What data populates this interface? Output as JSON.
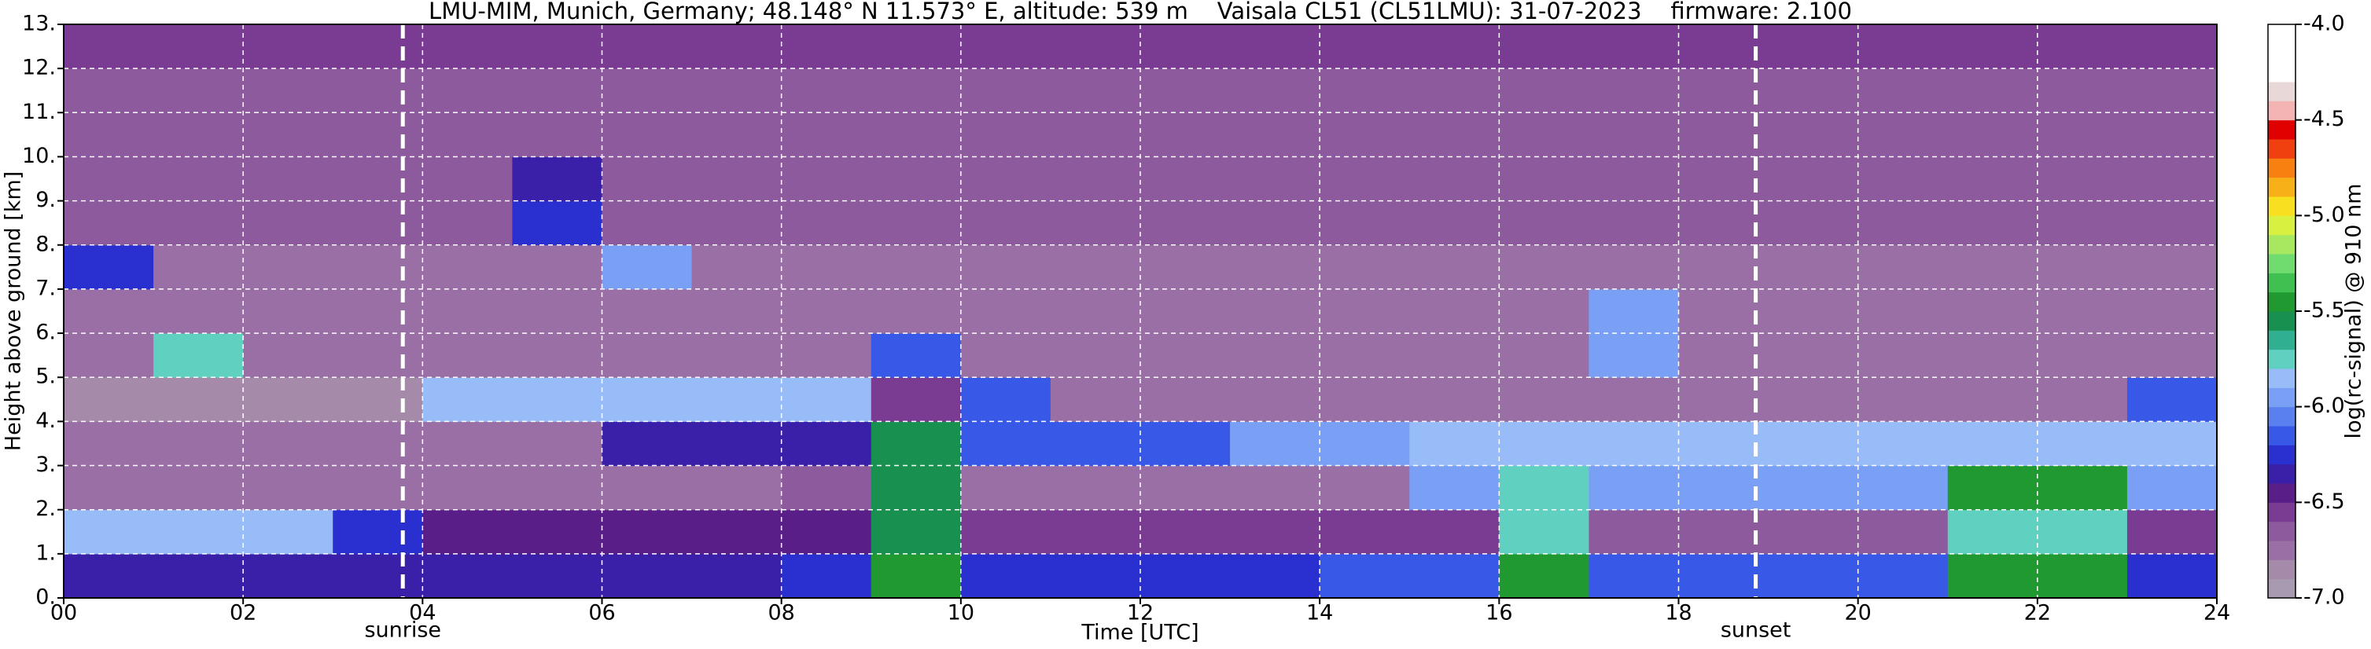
{
  "chart_data": {
    "type": "heatmap",
    "title": "LMU-MIM, Munich, Germany; 48.148° N 11.573° E, altitude: 539 m    Vaisala CL51 (CL51LMU): 31-07-2023    firmware: 2.100",
    "x_label": "Time [UTC]",
    "y_label": "Height above ground [km]",
    "colorbar_label": "log(rc-signal) @ 910 nm",
    "xlim": [
      0,
      24
    ],
    "ylim": [
      0,
      13
    ],
    "xticks": [
      {
        "value": 0,
        "label": "00"
      },
      {
        "value": 2,
        "label": "02"
      },
      {
        "value": 4,
        "label": "04"
      },
      {
        "value": 6,
        "label": "06"
      },
      {
        "value": 8,
        "label": "08"
      },
      10,
      12,
      14,
      16,
      18,
      20,
      22,
      24
    ],
    "yticks": [
      {
        "value": 0,
        "label": "0."
      },
      {
        "value": 1,
        "label": "1."
      },
      {
        "value": 2,
        "label": "2."
      },
      {
        "value": 3,
        "label": "3."
      },
      {
        "value": 4,
        "label": "4."
      },
      {
        "value": 5,
        "label": "5."
      },
      {
        "value": 6,
        "label": "6."
      },
      {
        "value": 7,
        "label": "7."
      },
      {
        "value": 8,
        "label": "8."
      },
      {
        "value": 9,
        "label": "9."
      },
      {
        "value": 10,
        "label": "10."
      },
      {
        "value": 11,
        "label": "11."
      },
      {
        "value": 12,
        "label": "12."
      },
      {
        "value": 13,
        "label": "13."
      }
    ],
    "grid": true,
    "x_bins": [
      0,
      1,
      2,
      3,
      4,
      5,
      6,
      7,
      8,
      9,
      10,
      11,
      12,
      13,
      14,
      15,
      16,
      17,
      18,
      19,
      20,
      21,
      22,
      23,
      24
    ],
    "y_bins": [
      0,
      1,
      2,
      3,
      4,
      5,
      6,
      7,
      8,
      9,
      10,
      11,
      12,
      13
    ],
    "values": [
      [
        -6.4,
        -6.4,
        -6.4,
        -6.4,
        -6.4,
        -6.4,
        -6.4,
        -6.4,
        -6.3,
        -5.5,
        -6.3,
        -6.3,
        -6.3,
        -6.3,
        -6.2,
        -6.2,
        -5.5,
        -6.2,
        -6.2,
        -6.2,
        -6.2,
        -5.5,
        -5.5,
        -6.3
      ],
      [
        -5.9,
        -5.9,
        -5.9,
        -6.3,
        -6.5,
        -6.5,
        -6.5,
        -6.5,
        -6.5,
        -5.6,
        -6.6,
        -6.6,
        -6.6,
        -6.6,
        -6.6,
        -6.6,
        -5.8,
        -6.7,
        -6.7,
        -6.7,
        -6.7,
        -5.8,
        -5.8,
        -6.6
      ],
      [
        -6.8,
        -6.8,
        -6.8,
        -6.8,
        -6.8,
        -6.8,
        -6.8,
        -6.8,
        -6.7,
        -5.6,
        -6.8,
        -6.8,
        -6.8,
        -6.8,
        -6.8,
        -6.0,
        -5.8,
        -6.0,
        -6.0,
        -6.0,
        -6.0,
        -5.5,
        -5.5,
        -6.0
      ],
      [
        -6.8,
        -6.8,
        -6.8,
        -6.8,
        -6.8,
        -6.8,
        -6.4,
        -6.4,
        -6.4,
        -5.6,
        -6.2,
        -6.2,
        -6.2,
        -6.0,
        -6.0,
        -5.9,
        -5.9,
        -5.9,
        -5.9,
        -5.9,
        -5.9,
        -5.9,
        -5.9,
        -5.9
      ],
      [
        -6.9,
        -6.9,
        -6.9,
        -6.9,
        -5.9,
        -5.9,
        -5.9,
        -5.9,
        -5.9,
        -6.6,
        -6.2,
        -6.8,
        -6.8,
        -6.8,
        -6.8,
        -6.8,
        -6.8,
        -6.8,
        -6.8,
        -6.8,
        -6.8,
        -6.8,
        -6.8,
        -6.2
      ],
      [
        -6.8,
        -5.8,
        -6.8,
        -6.8,
        -6.8,
        -6.8,
        -6.8,
        -6.8,
        -6.8,
        -6.2,
        -6.8,
        -6.8,
        -6.8,
        -6.8,
        -6.8,
        -6.8,
        -6.8,
        -6.0,
        -6.8,
        -6.8,
        -6.8,
        -6.8,
        -6.8,
        -6.8
      ],
      [
        -6.8,
        -6.8,
        -6.8,
        -6.8,
        -6.8,
        -6.8,
        -6.8,
        -6.8,
        -6.8,
        -6.8,
        -6.8,
        -6.8,
        -6.8,
        -6.8,
        -6.8,
        -6.8,
        -6.8,
        -6.0,
        -6.8,
        -6.8,
        -6.8,
        -6.8,
        -6.8,
        -6.8
      ],
      [
        -6.3,
        -6.8,
        -6.8,
        -6.8,
        -6.8,
        -6.8,
        -6.0,
        -6.8,
        -6.8,
        -6.8,
        -6.8,
        -6.8,
        -6.8,
        -6.8,
        -6.8,
        -6.8,
        -6.8,
        -6.8,
        -6.8,
        -6.8,
        -6.8,
        -6.8,
        -6.8,
        -6.8
      ],
      [
        -6.7,
        -6.7,
        -6.7,
        -6.7,
        -6.7,
        -6.3,
        -6.7,
        -6.7,
        -6.7,
        -6.7,
        -6.7,
        -6.7,
        -6.7,
        -6.7,
        -6.7,
        -6.7,
        -6.7,
        -6.7,
        -6.7,
        -6.7,
        -6.7,
        -6.7,
        -6.7,
        -6.7
      ],
      [
        -6.7,
        -6.7,
        -6.7,
        -6.7,
        -6.7,
        -6.4,
        -6.7,
        -6.7,
        -6.7,
        -6.7,
        -6.7,
        -6.7,
        -6.7,
        -6.7,
        -6.7,
        -6.7,
        -6.7,
        -6.7,
        -6.7,
        -6.7,
        -6.7,
        -6.7,
        -6.7,
        -6.7
      ],
      [
        -6.7,
        -6.7,
        -6.7,
        -6.7,
        -6.7,
        -6.7,
        -6.7,
        -6.7,
        -6.7,
        -6.7,
        -6.7,
        -6.7,
        -6.7,
        -6.7,
        -6.7,
        -6.7,
        -6.7,
        -6.7,
        -6.7,
        -6.7,
        -6.7,
        -6.7,
        -6.7,
        -6.7
      ],
      [
        -6.7,
        -6.7,
        -6.7,
        -6.7,
        -6.7,
        -6.7,
        -6.7,
        -6.7,
        -6.7,
        -6.7,
        -6.7,
        -6.7,
        -6.7,
        -6.7,
        -6.7,
        -6.7,
        -6.7,
        -6.7,
        -6.7,
        -6.7,
        -6.7,
        -6.7,
        -6.7,
        -6.7
      ],
      [
        -6.6,
        -6.6,
        -6.6,
        -6.6,
        -6.6,
        -6.6,
        -6.6,
        -6.6,
        -6.6,
        -6.6,
        -6.6,
        -6.6,
        -6.6,
        -6.6,
        -6.6,
        -6.6,
        -6.6,
        -6.6,
        -6.6,
        -6.6,
        -6.6,
        -6.6,
        -6.6,
        -6.6
      ]
    ],
    "clim": [
      -7,
      -4
    ],
    "cticks": [
      {
        "value": -7,
        "label": "-7.0"
      },
      -6.5,
      {
        "value": -6,
        "label": "-6.0"
      },
      -5.5,
      {
        "value": -5,
        "label": "-5.0"
      },
      -4.5,
      {
        "value": -4,
        "label": "-4.0"
      }
    ],
    "colormap": [
      "#a89ab0",
      "#a58aaa",
      "#9a6fa5",
      "#8e5a9e",
      "#7a3c92",
      "#5a1e88",
      "#3a20a8",
      "#2a30d0",
      "#3858e8",
      "#5a80f0",
      "#7aa0f5",
      "#98bcf8",
      "#60d0c0",
      "#30b090",
      "#189050",
      "#209a30",
      "#40c050",
      "#70dc70",
      "#a8e860",
      "#d8f040",
      "#f8e020",
      "#f8b018",
      "#f88010",
      "#f04010",
      "#e00000",
      "#f4b4b4",
      "#e8d8d8",
      "#ffffff",
      "#ffffff",
      "#ffffff"
    ],
    "annotations": [
      {
        "text": "sunrise",
        "x": 3.78
      },
      {
        "text": "sunset",
        "x": 18.86
      }
    ]
  }
}
